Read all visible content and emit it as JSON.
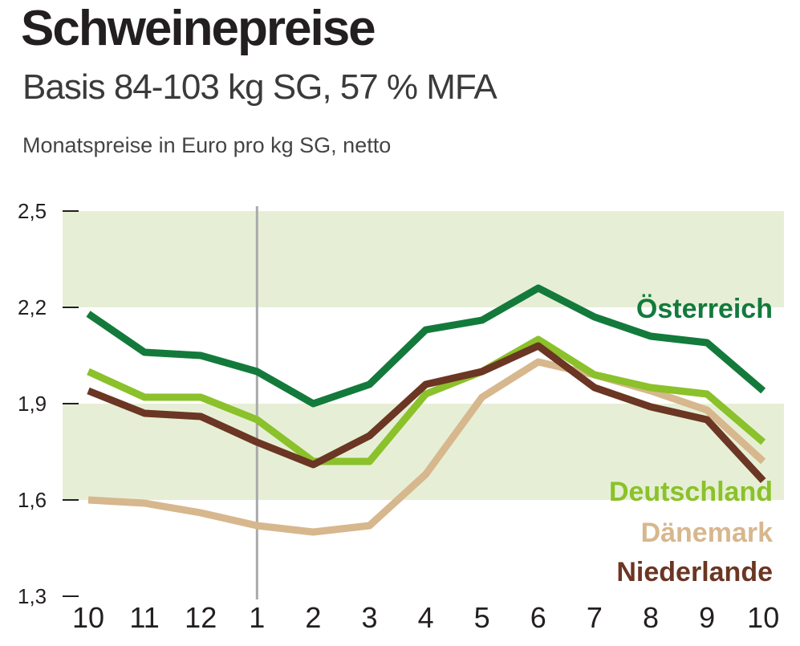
{
  "chart_data": {
    "type": "line",
    "title": "Schweinepreise",
    "subtitle": "Basis 84-103 kg SG, 57 % MFA",
    "ylabel": "Monatspreise in Euro pro kg SG, netto",
    "xlabel": "",
    "categories": [
      "10",
      "11",
      "12",
      "1",
      "2",
      "3",
      "4",
      "5",
      "6",
      "7",
      "8",
      "9",
      "10"
    ],
    "yticks": [
      "1,3",
      "1,6",
      "1,9",
      "2,2",
      "2,5"
    ],
    "ylim": [
      1.3,
      2.5
    ],
    "year_divider_index": 3,
    "bands": [
      [
        1.6,
        1.9
      ],
      [
        2.2,
        2.5
      ]
    ],
    "series": [
      {
        "name": "Österreich",
        "color": "#137a3c",
        "values": [
          2.18,
          2.06,
          2.05,
          2.0,
          1.9,
          1.96,
          2.13,
          2.16,
          2.26,
          2.17,
          2.11,
          2.09,
          1.94
        ]
      },
      {
        "name": "Deutschland",
        "color": "#8bc12a",
        "values": [
          2.0,
          1.92,
          1.92,
          1.85,
          1.72,
          1.72,
          1.93,
          2.0,
          2.1,
          1.99,
          1.95,
          1.93,
          1.78
        ]
      },
      {
        "name": "Dänemark",
        "color": "#d7b78d",
        "values": [
          1.6,
          1.59,
          1.56,
          1.52,
          1.5,
          1.52,
          1.68,
          1.92,
          2.03,
          1.99,
          1.94,
          1.88,
          1.72
        ]
      },
      {
        "name": "Niederlande",
        "color": "#6b3623",
        "values": [
          1.94,
          1.87,
          1.86,
          1.78,
          1.71,
          1.8,
          1.96,
          2.0,
          2.08,
          1.95,
          1.89,
          1.85,
          1.66
        ]
      }
    ]
  }
}
